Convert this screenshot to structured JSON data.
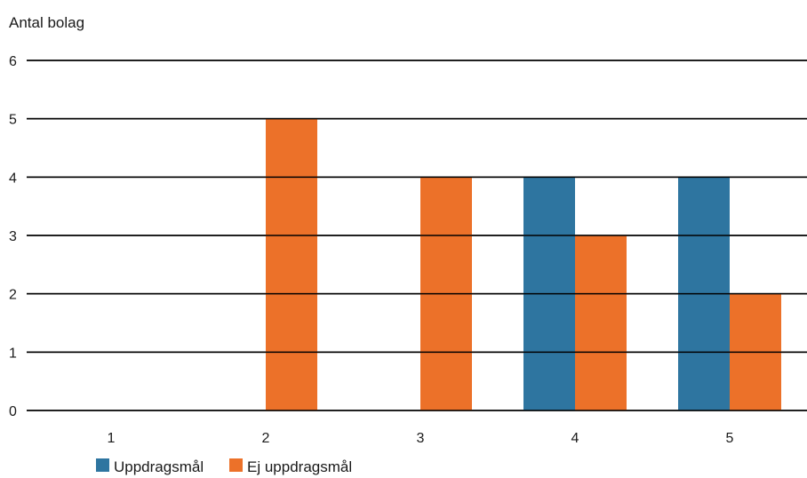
{
  "chart_data": {
    "type": "bar",
    "title": "",
    "xlabel": "",
    "ylabel": "Antal bolag",
    "categories": [
      "1",
      "2",
      "3",
      "4",
      "5"
    ],
    "series": [
      {
        "name": "Uppdragsmål",
        "values": [
          0,
          0,
          0,
          4,
          4
        ],
        "color": "#2e75a0"
      },
      {
        "name": "Ej uppdragsmål",
        "values": [
          0,
          5,
          4,
          3,
          2
        ],
        "color": "#ec7129"
      }
    ],
    "ylim": [
      0,
      6
    ],
    "yticks": [
      0,
      1,
      2,
      3,
      4,
      5,
      6
    ],
    "grid": true,
    "legend_position": "bottom-left"
  }
}
